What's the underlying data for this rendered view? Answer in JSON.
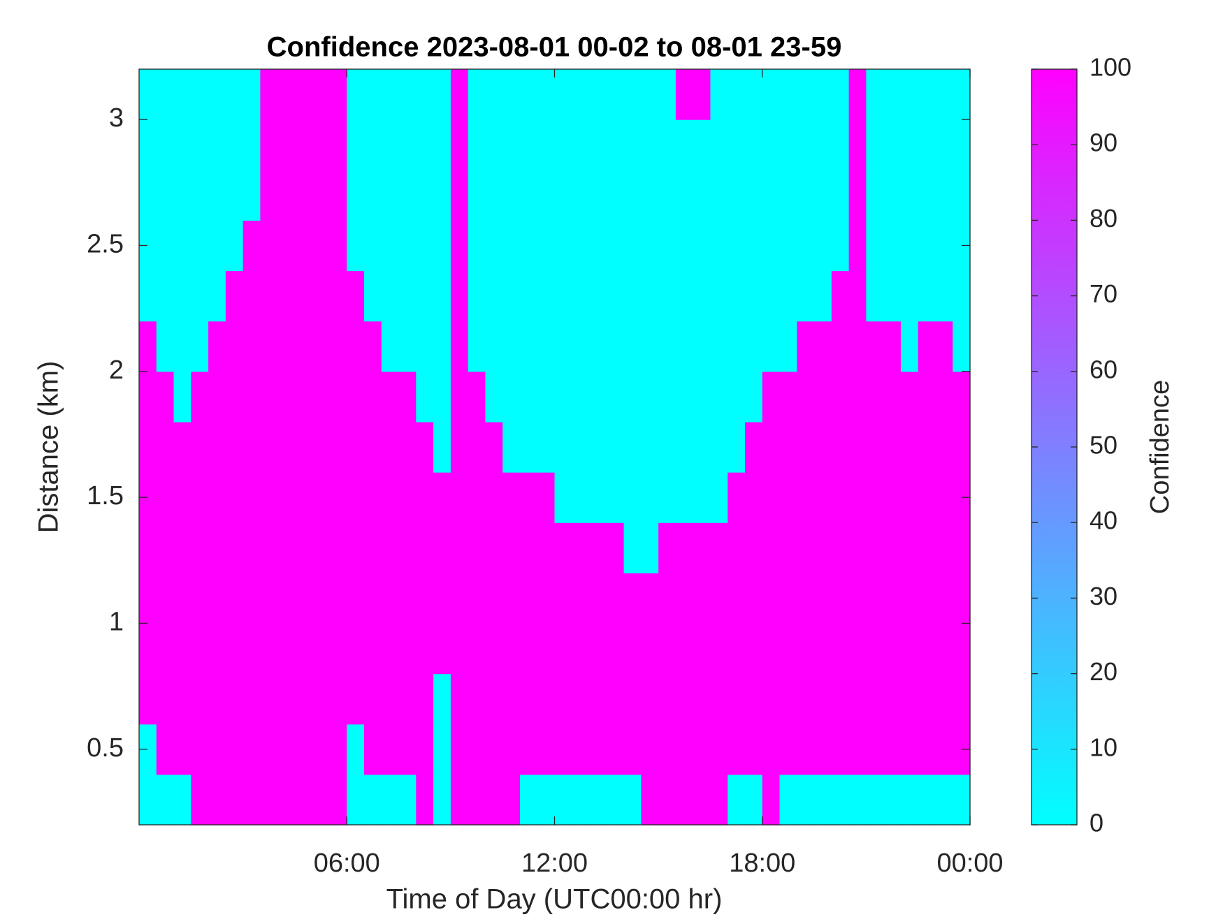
{
  "chart_data": {
    "type": "heatmap",
    "title": "Confidence 2023-08-01 00-02 to 08-01 23-59",
    "xlabel": "Time of Day (UTC00:00 hr)",
    "ylabel": "Distance (km)",
    "colorbar_label": "Confidence",
    "colormap": [
      "#00ffff",
      "#ff00ff"
    ],
    "clim": [
      0,
      100
    ],
    "cticks": [
      0,
      10,
      20,
      30,
      40,
      50,
      60,
      70,
      80,
      90,
      100
    ],
    "xlim": [
      0,
      24
    ],
    "xticks": [
      {
        "value": 6,
        "label": "06:00"
      },
      {
        "value": 12,
        "label": "12:00"
      },
      {
        "value": 18,
        "label": "18:00"
      },
      {
        "value": 24,
        "label": "00:00"
      }
    ],
    "ylim": [
      0.2,
      3.2
    ],
    "yticks": [
      0.5,
      1,
      1.5,
      2,
      2.5,
      3
    ],
    "x": [
      0.25,
      0.75,
      1.25,
      1.75,
      2.25,
      2.75,
      3.25,
      3.75,
      4.25,
      4.75,
      5.25,
      5.75,
      6.25,
      6.75,
      7.25,
      7.75,
      8.25,
      8.75,
      9.25,
      9.75,
      10.25,
      10.75,
      11.25,
      11.75,
      12.25,
      12.75,
      13.25,
      13.75,
      14.25,
      14.75,
      15.25,
      15.75,
      16.25,
      16.75,
      17.25,
      17.75,
      18.25,
      18.75,
      19.25,
      19.75,
      20.25,
      20.75,
      21.25,
      21.75,
      22.25,
      22.75,
      23.25,
      23.75
    ],
    "y": [
      0.3,
      0.5,
      0.7,
      0.9,
      1.1,
      1.3,
      1.5,
      1.7,
      1.9,
      2.1,
      2.3,
      2.5,
      2.7,
      2.9,
      3.1
    ],
    "z": [
      [
        0,
        0,
        0,
        100,
        100,
        100,
        100,
        100,
        100,
        100,
        100,
        100,
        0,
        0,
        0,
        0,
        100,
        0,
        100,
        100,
        100,
        100,
        0,
        0,
        0,
        0,
        0,
        0,
        0,
        100,
        100,
        100,
        100,
        100,
        0,
        0,
        100,
        0,
        0,
        0,
        0,
        0,
        0,
        0,
        0,
        0,
        0,
        0
      ],
      [
        0,
        100,
        100,
        100,
        100,
        100,
        100,
        100,
        100,
        100,
        100,
        100,
        0,
        100,
        100,
        100,
        100,
        0,
        100,
        100,
        100,
        100,
        100,
        100,
        100,
        100,
        100,
        100,
        100,
        100,
        100,
        100,
        100,
        100,
        100,
        100,
        100,
        100,
        100,
        100,
        100,
        100,
        100,
        100,
        100,
        100,
        100,
        100
      ],
      [
        100,
        100,
        100,
        100,
        100,
        100,
        100,
        100,
        100,
        100,
        100,
        100,
        100,
        100,
        100,
        100,
        100,
        0,
        100,
        100,
        100,
        100,
        100,
        100,
        100,
        100,
        100,
        100,
        100,
        100,
        100,
        100,
        100,
        100,
        100,
        100,
        100,
        100,
        100,
        100,
        100,
        100,
        100,
        100,
        100,
        100,
        100,
        100
      ],
      [
        100,
        100,
        100,
        100,
        100,
        100,
        100,
        100,
        100,
        100,
        100,
        100,
        100,
        100,
        100,
        100,
        100,
        100,
        100,
        100,
        100,
        100,
        100,
        100,
        100,
        100,
        100,
        100,
        100,
        100,
        100,
        100,
        100,
        100,
        100,
        100,
        100,
        100,
        100,
        100,
        100,
        100,
        100,
        100,
        100,
        100,
        100,
        100
      ],
      [
        100,
        100,
        100,
        100,
        100,
        100,
        100,
        100,
        100,
        100,
        100,
        100,
        100,
        100,
        100,
        100,
        100,
        100,
        100,
        100,
        100,
        100,
        100,
        100,
        100,
        100,
        100,
        100,
        100,
        100,
        100,
        100,
        100,
        100,
        100,
        100,
        100,
        100,
        100,
        100,
        100,
        100,
        100,
        100,
        100,
        100,
        100,
        100
      ],
      [
        100,
        100,
        100,
        100,
        100,
        100,
        100,
        100,
        100,
        100,
        100,
        100,
        100,
        100,
        100,
        100,
        100,
        100,
        100,
        100,
        100,
        100,
        100,
        100,
        100,
        100,
        100,
        100,
        0,
        0,
        100,
        100,
        100,
        100,
        100,
        100,
        100,
        100,
        100,
        100,
        100,
        100,
        100,
        100,
        100,
        100,
        100,
        100
      ],
      [
        100,
        100,
        100,
        100,
        100,
        100,
        100,
        100,
        100,
        100,
        100,
        100,
        100,
        100,
        100,
        100,
        100,
        100,
        100,
        100,
        100,
        100,
        100,
        100,
        0,
        0,
        0,
        0,
        0,
        0,
        0,
        0,
        0,
        0,
        100,
        100,
        100,
        100,
        100,
        100,
        100,
        100,
        100,
        100,
        100,
        100,
        100,
        100
      ],
      [
        100,
        100,
        100,
        100,
        100,
        100,
        100,
        100,
        100,
        100,
        100,
        100,
        100,
        100,
        100,
        100,
        100,
        0,
        100,
        100,
        100,
        0,
        0,
        0,
        0,
        0,
        0,
        0,
        0,
        0,
        0,
        0,
        0,
        0,
        0,
        100,
        100,
        100,
        100,
        100,
        100,
        100,
        100,
        100,
        100,
        100,
        100,
        100
      ],
      [
        100,
        100,
        0,
        100,
        100,
        100,
        100,
        100,
        100,
        100,
        100,
        100,
        100,
        100,
        100,
        100,
        0,
        0,
        100,
        100,
        0,
        0,
        0,
        0,
        0,
        0,
        0,
        0,
        0,
        0,
        0,
        0,
        0,
        0,
        0,
        0,
        100,
        100,
        100,
        100,
        100,
        100,
        100,
        100,
        100,
        100,
        100,
        100
      ],
      [
        100,
        0,
        0,
        0,
        100,
        100,
        100,
        100,
        100,
        100,
        100,
        100,
        100,
        100,
        0,
        0,
        0,
        0,
        100,
        0,
        0,
        0,
        0,
        0,
        0,
        0,
        0,
        0,
        0,
        0,
        0,
        0,
        0,
        0,
        0,
        0,
        0,
        0,
        100,
        100,
        100,
        100,
        100,
        100,
        0,
        100,
        100,
        0
      ],
      [
        0,
        0,
        0,
        0,
        0,
        100,
        100,
        100,
        100,
        100,
        100,
        100,
        100,
        0,
        0,
        0,
        0,
        0,
        100,
        0,
        0,
        0,
        0,
        0,
        0,
        0,
        0,
        0,
        0,
        0,
        0,
        0,
        0,
        0,
        0,
        0,
        0,
        0,
        0,
        0,
        100,
        100,
        0,
        0,
        0,
        0,
        0,
        0
      ],
      [
        0,
        0,
        0,
        0,
        0,
        0,
        100,
        100,
        100,
        100,
        100,
        100,
        0,
        0,
        0,
        0,
        0,
        0,
        100,
        0,
        0,
        0,
        0,
        0,
        0,
        0,
        0,
        0,
        0,
        0,
        0,
        0,
        0,
        0,
        0,
        0,
        0,
        0,
        0,
        0,
        0,
        100,
        0,
        0,
        0,
        0,
        0,
        0
      ],
      [
        0,
        0,
        0,
        0,
        0,
        0,
        0,
        100,
        100,
        100,
        100,
        100,
        0,
        0,
        0,
        0,
        0,
        0,
        100,
        0,
        0,
        0,
        0,
        0,
        0,
        0,
        0,
        0,
        0,
        0,
        0,
        0,
        0,
        0,
        0,
        0,
        0,
        0,
        0,
        0,
        0,
        100,
        0,
        0,
        0,
        0,
        0,
        0
      ],
      [
        0,
        0,
        0,
        0,
        0,
        0,
        0,
        100,
        100,
        100,
        100,
        100,
        0,
        0,
        0,
        0,
        0,
        0,
        100,
        0,
        0,
        0,
        0,
        0,
        0,
        0,
        0,
        0,
        0,
        0,
        0,
        0,
        0,
        0,
        0,
        0,
        0,
        0,
        0,
        0,
        0,
        100,
        0,
        0,
        0,
        0,
        0,
        0
      ],
      [
        0,
        0,
        0,
        0,
        0,
        0,
        0,
        100,
        100,
        100,
        100,
        100,
        0,
        0,
        0,
        0,
        0,
        0,
        100,
        0,
        0,
        0,
        0,
        0,
        0,
        0,
        0,
        0,
        0,
        0,
        0,
        100,
        100,
        0,
        0,
        0,
        0,
        0,
        0,
        0,
        0,
        100,
        0,
        0,
        0,
        0,
        0,
        0
      ]
    ]
  }
}
